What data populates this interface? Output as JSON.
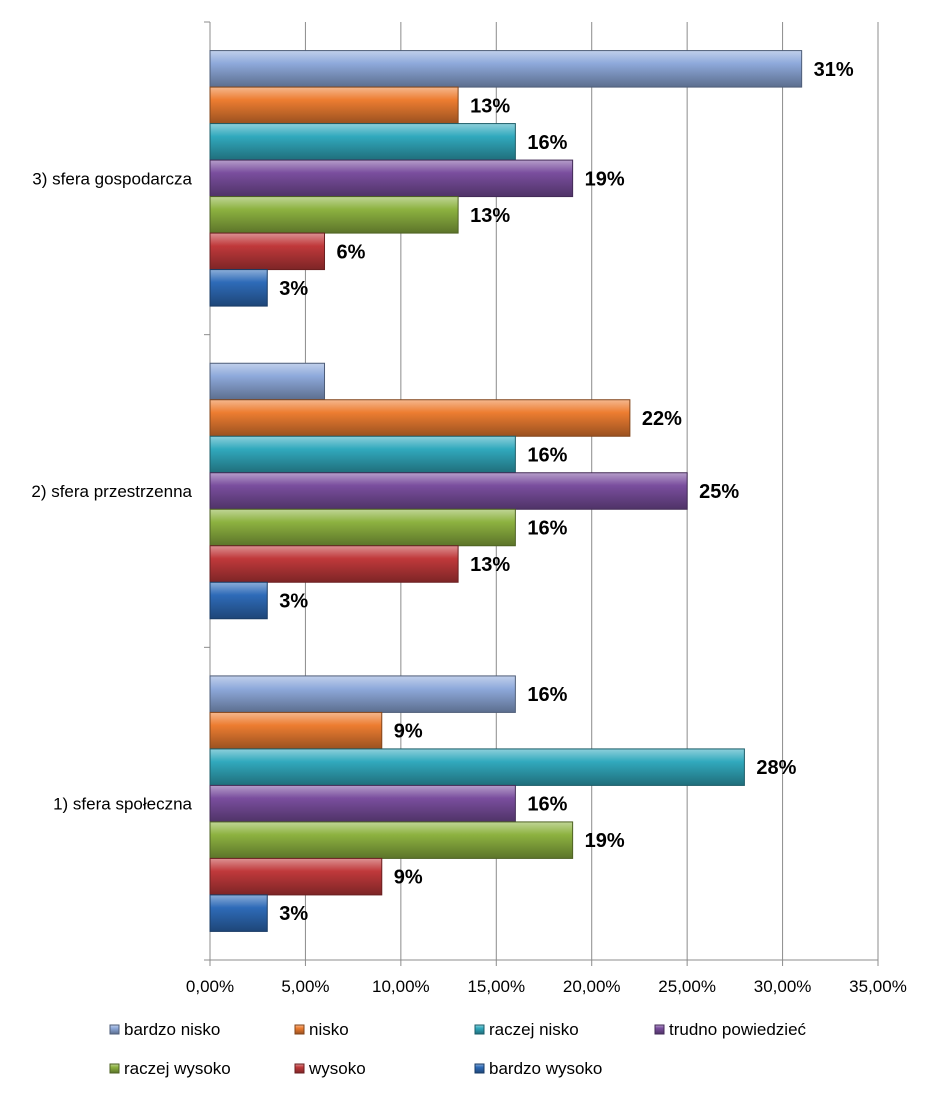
{
  "chart_data": {
    "type": "bar",
    "orientation": "horizontal",
    "title": "",
    "xlabel": "",
    "ylabel": "",
    "categories": [
      "1) sfera społeczna",
      "2) sfera przestrzenna",
      "3) sfera gospodarcza"
    ],
    "xlim": [
      0,
      35
    ],
    "xticks": [
      "0,00%",
      "5,00%",
      "10,00%",
      "15,00%",
      "20,00%",
      "25,00%",
      "30,00%",
      "35,00%"
    ],
    "grid": true,
    "legend_position": "bottom",
    "series": [
      {
        "name": "bardzo nisko",
        "color": "#8EA9DB",
        "values": [
          16,
          6,
          31
        ],
        "labels": [
          "16%",
          "",
          "31%"
        ]
      },
      {
        "name": "nisko",
        "color": "#ED7D31",
        "values": [
          9,
          22,
          13
        ],
        "labels": [
          "9%",
          "22%",
          "13%"
        ]
      },
      {
        "name": "raczej nisko",
        "color": "#31A9BD",
        "values": [
          28,
          16,
          16
        ],
        "labels": [
          "28%",
          "16%",
          "16%"
        ]
      },
      {
        "name": "trudno powiedzieć",
        "color": "#7A4E9E",
        "values": [
          16,
          25,
          19
        ],
        "labels": [
          "16%",
          "25%",
          "19%"
        ]
      },
      {
        "name": "raczej wysoko",
        "color": "#8DB240",
        "values": [
          19,
          16,
          13
        ],
        "labels": [
          "19%",
          "16%",
          "13%"
        ]
      },
      {
        "name": "wysoko",
        "color": "#C0393B",
        "values": [
          9,
          13,
          6
        ],
        "labels": [
          "9%",
          "13%",
          "6%"
        ]
      },
      {
        "name": "bardzo wysoko",
        "color": "#2E6BB8",
        "values": [
          3,
          3,
          3
        ],
        "labels": [
          "3%",
          "3%",
          "3%"
        ]
      }
    ]
  }
}
